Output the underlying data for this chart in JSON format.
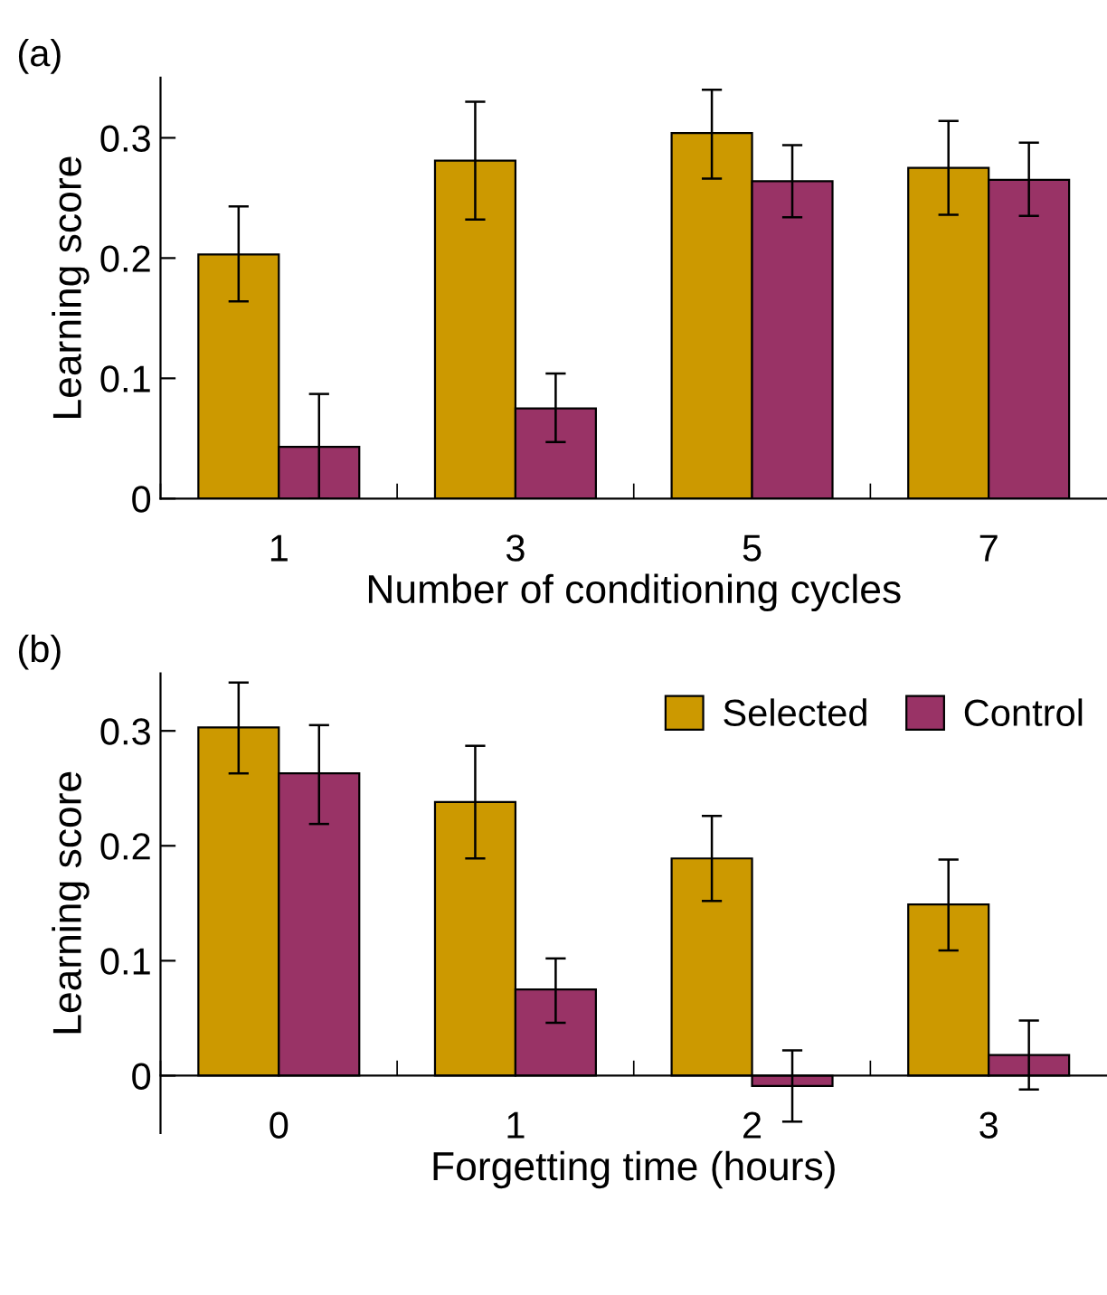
{
  "chart_data": [
    {
      "type": "bar",
      "title": "(a)",
      "xlabel": "Number of conditioning cycles",
      "ylabel": "Learning score",
      "categories": [
        "1",
        "3",
        "5",
        "7"
      ],
      "ylim": [
        0,
        0.35
      ],
      "yticks": [
        {
          "value": 0,
          "label": "0"
        },
        0.1,
        0.2,
        0.3
      ],
      "grid": false,
      "legend": false,
      "series": [
        {
          "color": "#cc9900",
          "values": [
            0.203,
            0.281,
            0.304,
            0.275
          ],
          "errors": [
            [
              0.164,
              0.243
            ],
            [
              0.232,
              0.33
            ],
            [
              0.266,
              0.34
            ],
            [
              0.236,
              0.314
            ]
          ]
        },
        {
          "color": "#993366",
          "values": [
            0.043,
            0.075,
            0.264,
            0.265
          ],
          "errors": [
            [
              0.0,
              0.087
            ],
            [
              0.047,
              0.104
            ],
            [
              0.234,
              0.294
            ],
            [
              0.235,
              0.296
            ]
          ]
        }
      ]
    },
    {
      "type": "bar",
      "title": "(b)",
      "xlabel": "Forgetting time (hours)",
      "ylabel": "Learning score",
      "categories": [
        "0",
        "1",
        "2",
        "3"
      ],
      "ylim": [
        -0.05,
        0.35
      ],
      "yticks": [
        {
          "value": 0,
          "label": "0"
        },
        0.1,
        0.2,
        0.3
      ],
      "grid": false,
      "legend": "top right",
      "series": [
        {
          "name": "Selected",
          "color": "#cc9900",
          "values": [
            0.303,
            0.238,
            0.189,
            0.149
          ],
          "errors": [
            [
              0.263,
              0.342
            ],
            [
              0.189,
              0.287
            ],
            [
              0.152,
              0.226
            ],
            [
              0.109,
              0.188
            ]
          ]
        },
        {
          "name": "Control",
          "color": "#993366",
          "values": [
            0.263,
            0.075,
            -0.009,
            0.018
          ],
          "errors": [
            [
              0.219,
              0.305
            ],
            [
              0.046,
              0.102
            ],
            [
              -0.04,
              0.022
            ],
            [
              -0.012,
              0.048
            ]
          ]
        }
      ]
    }
  ]
}
